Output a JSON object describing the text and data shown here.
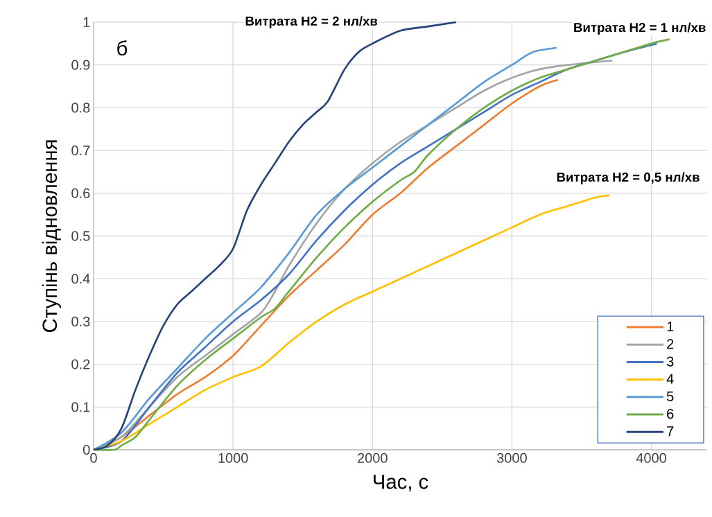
{
  "chart_data": {
    "type": "line",
    "xlabel": "Час, с",
    "ylabel": "Ступінь відновлення",
    "annotations": [
      "б",
      "Витрата H2 = 2 нл/хв",
      "Витрата H2 = 1 нл/хв",
      "Витрата H2 = 0,5 нл/хв"
    ],
    "xlim": [
      0,
      4400
    ],
    "ylim": [
      0,
      1
    ],
    "xticks": [
      0,
      1000,
      2000,
      3000,
      4000
    ],
    "yticks": [
      0,
      0.1,
      0.2,
      0.3,
      0.4,
      0.5,
      0.6,
      0.7,
      0.8,
      0.9,
      1
    ],
    "grid": true,
    "legend": "bottom right",
    "series": [
      {
        "name": "1",
        "color": "#ed7d31",
        "x": [
          0,
          200,
          400,
          600,
          800,
          1000,
          1200,
          1400,
          1600,
          1800,
          2000,
          2200,
          2400,
          2600,
          2800,
          3000,
          3200,
          3330
        ],
        "values": [
          0,
          0.03,
          0.08,
          0.13,
          0.17,
          0.22,
          0.29,
          0.36,
          0.42,
          0.48,
          0.55,
          0.6,
          0.66,
          0.71,
          0.76,
          0.81,
          0.85,
          0.865
        ]
      },
      {
        "name": "2",
        "color": "#a5a5a5",
        "x": [
          0,
          200,
          400,
          600,
          800,
          1000,
          1200,
          1300,
          1400,
          1600,
          1800,
          2000,
          2200,
          2400,
          2600,
          2800,
          3000,
          3200,
          3400,
          3720
        ],
        "values": [
          0,
          0.03,
          0.1,
          0.17,
          0.22,
          0.27,
          0.32,
          0.37,
          0.43,
          0.53,
          0.61,
          0.67,
          0.72,
          0.76,
          0.8,
          0.84,
          0.87,
          0.89,
          0.9,
          0.91
        ]
      },
      {
        "name": "3",
        "color": "#4472c4",
        "x": [
          0,
          200,
          400,
          600,
          800,
          1000,
          1200,
          1400,
          1600,
          1800,
          2000,
          2200,
          2400,
          2600,
          2800,
          3000,
          3200,
          3400,
          3600,
          3800,
          4040
        ],
        "values": [
          0,
          0.02,
          0.1,
          0.18,
          0.24,
          0.3,
          0.35,
          0.41,
          0.49,
          0.56,
          0.62,
          0.67,
          0.71,
          0.75,
          0.79,
          0.83,
          0.86,
          0.89,
          0.91,
          0.93,
          0.95
        ]
      },
      {
        "name": "4",
        "color": "#ffc000",
        "x": [
          0,
          200,
          400,
          600,
          800,
          1000,
          1200,
          1400,
          1600,
          1800,
          2000,
          2200,
          2400,
          2600,
          2800,
          3000,
          3200,
          3400,
          3600,
          3700
        ],
        "values": [
          0,
          0.02,
          0.06,
          0.1,
          0.14,
          0.17,
          0.195,
          0.25,
          0.3,
          0.34,
          0.37,
          0.4,
          0.43,
          0.46,
          0.49,
          0.52,
          0.55,
          0.57,
          0.59,
          0.595
        ]
      },
      {
        "name": "5",
        "color": "#5b9bd5",
        "x": [
          0,
          200,
          400,
          600,
          800,
          1000,
          1200,
          1400,
          1600,
          1800,
          2000,
          2200,
          2400,
          2600,
          2800,
          3000,
          3150,
          3320
        ],
        "values": [
          0,
          0.04,
          0.12,
          0.19,
          0.26,
          0.32,
          0.38,
          0.46,
          0.55,
          0.61,
          0.66,
          0.71,
          0.76,
          0.81,
          0.86,
          0.9,
          0.93,
          0.94
        ]
      },
      {
        "name": "6",
        "color": "#70ad47",
        "x": [
          0,
          150,
          200,
          300,
          400,
          600,
          800,
          1000,
          1200,
          1300,
          1400,
          1600,
          1800,
          2000,
          2200,
          2300,
          2400,
          2600,
          2800,
          3000,
          3200,
          3400,
          3600,
          3800,
          4000,
          4130
        ],
        "values": [
          0,
          0,
          0.01,
          0.03,
          0.07,
          0.15,
          0.21,
          0.26,
          0.31,
          0.33,
          0.37,
          0.45,
          0.52,
          0.58,
          0.63,
          0.65,
          0.69,
          0.75,
          0.8,
          0.84,
          0.87,
          0.89,
          0.91,
          0.93,
          0.95,
          0.96
        ]
      },
      {
        "name": "7",
        "color": "#264478",
        "x": [
          0,
          100,
          200,
          300,
          400,
          500,
          600,
          700,
          800,
          900,
          1000,
          1100,
          1200,
          1300,
          1400,
          1500,
          1600,
          1680,
          1800,
          1900,
          2000,
          2200,
          2400,
          2600
        ],
        "values": [
          0,
          0.01,
          0.05,
          0.14,
          0.22,
          0.29,
          0.34,
          0.37,
          0.4,
          0.43,
          0.47,
          0.56,
          0.62,
          0.67,
          0.72,
          0.76,
          0.79,
          0.815,
          0.89,
          0.93,
          0.95,
          0.98,
          0.99,
          1.0
        ]
      }
    ]
  }
}
